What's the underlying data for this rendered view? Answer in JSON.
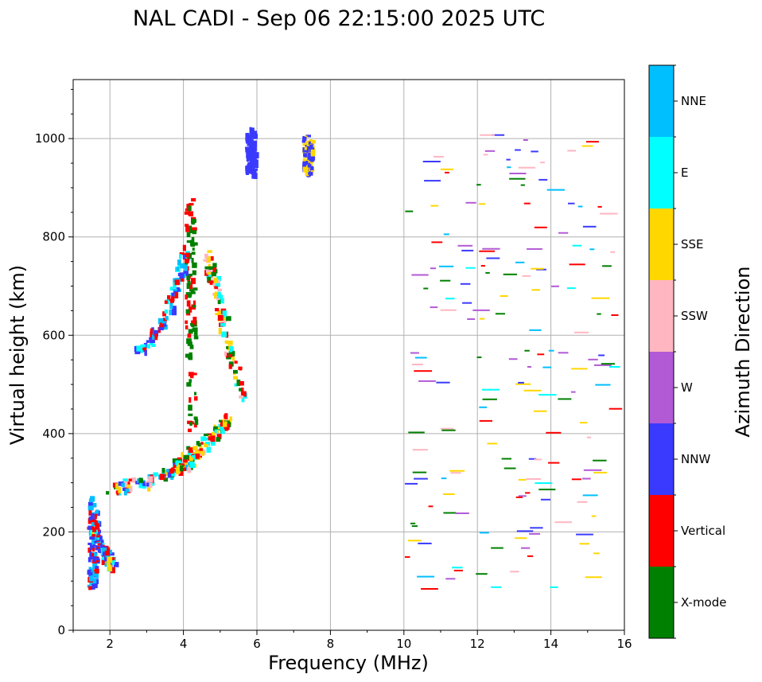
{
  "chart_data": {
    "type": "scatter",
    "title": "NAL CADI - Sep 06 22:15:00 2025 UTC",
    "xlabel": "Frequency (MHz)",
    "ylabel": "Virtual height (km)",
    "xlim": [
      1,
      16
    ],
    "ylim": [
      0,
      1120
    ],
    "xticks": [
      2,
      4,
      6,
      8,
      10,
      12,
      14,
      16
    ],
    "yticks": [
      0,
      200,
      400,
      600,
      800,
      1000
    ],
    "grid": true,
    "colorbar": {
      "label": "Azimuth Direction",
      "categories": [
        {
          "name": "X-mode",
          "color": "#008000"
        },
        {
          "name": "Vertical",
          "color": "#ff0000"
        },
        {
          "name": "NNW",
          "color": "#3a3aff"
        },
        {
          "name": "W",
          "color": "#b25ad6"
        },
        {
          "name": "SSW",
          "color": "#ffb6c1"
        },
        {
          "name": "SSE",
          "color": "#ffd700"
        },
        {
          "name": "E",
          "color": "#00ffff"
        },
        {
          "name": "NNE",
          "color": "#00bfff"
        }
      ]
    },
    "traces": [
      {
        "f": [
          1.5,
          1.5
        ],
        "h": [
          270,
          90
        ],
        "colors": [
          "Vertical",
          "NNW",
          "NNE"
        ]
      },
      {
        "f": [
          1.5,
          2.0
        ],
        "h": [
          205,
          135
        ],
        "colors": [
          "Vertical",
          "NNE",
          "SSE",
          "NNW",
          "E"
        ]
      },
      {
        "f": [
          2.0,
          2.5,
          3.0,
          3.5,
          4.0,
          4.5
        ],
        "h": [
          290,
          300,
          305,
          320,
          340,
          360
        ],
        "colors": [
          "Vertical",
          "NNE",
          "SSW",
          "E",
          "X-mode",
          "SSE",
          "NNW"
        ]
      },
      {
        "f": [
          3.7,
          4.0,
          4.4,
          4.8,
          5.2
        ],
        "h": [
          330,
          355,
          375,
          405,
          440
        ],
        "colors": [
          "X-mode",
          "SSE",
          "E",
          "Vertical"
        ]
      },
      {
        "f": [
          2.6,
          3.0,
          3.3,
          3.6,
          3.85,
          4.0
        ],
        "h": [
          565,
          590,
          620,
          660,
          720,
          780
        ],
        "colors": [
          "Vertical",
          "NNE",
          "E",
          "NNW"
        ]
      },
      {
        "f": [
          4.1,
          4.15,
          4.2
        ],
        "h": [
          880,
          700,
          400
        ],
        "colors": [
          "Vertical",
          "X-mode"
        ]
      },
      {
        "f": [
          4.6,
          5.0,
          5.6
        ],
        "h": [
          770,
          640,
          470
        ],
        "colors": [
          "X-mode",
          "SSE",
          "SSW",
          "E",
          "Vertical"
        ]
      },
      {
        "f": [
          5.8,
          5.8
        ],
        "h": [
          1015,
          930
        ],
        "colors": [
          "NNW"
        ]
      },
      {
        "f": [
          7.35,
          7.35
        ],
        "h": [
          1000,
          935
        ],
        "colors": [
          "SSE",
          "NNW"
        ]
      },
      {
        "f": [
          10.0,
          16.0
        ],
        "h": [
          1010,
          85
        ],
        "colors": [
          "SSE",
          "NNW",
          "W",
          "E",
          "NNE",
          "Vertical",
          "SSW",
          "X-mode"
        ]
      }
    ]
  }
}
